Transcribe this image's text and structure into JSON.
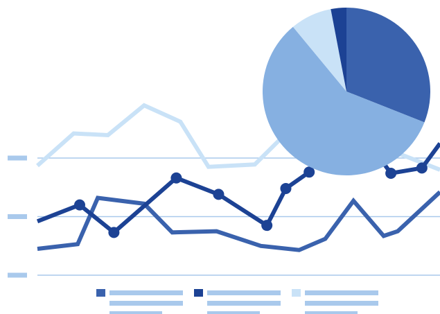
{
  "colors": {
    "grid": "#a9c9ec",
    "tick": "#a9c9ec",
    "legend_placeholder": "#a9c9ec",
    "series_light": "#c9e2f7",
    "series_medium": "#3a62ad",
    "series_dark": "#1c4294",
    "pie": [
      "#3a62ad",
      "#86b0e1",
      "#c9e2f7",
      "#1c4294"
    ]
  },
  "icons": [
    "legend-swatch-medium",
    "legend-swatch-dark",
    "legend-swatch-light"
  ],
  "chart_data": [
    {
      "type": "line",
      "title": "",
      "xlabel": "",
      "ylabel": "",
      "grid": true,
      "legend_placement": "bottom",
      "ylim": [
        0,
        3
      ],
      "yticks": [
        0,
        1,
        2
      ],
      "series": [
        {
          "color_key": "series_light",
          "markers": false,
          "points": [
            [
              0,
              1.87
            ],
            [
              0.09,
              2.42
            ],
            [
              0.175,
              2.39
            ],
            [
              0.265,
              2.9
            ],
            [
              0.355,
              2.62
            ],
            [
              0.425,
              1.85
            ],
            [
              0.54,
              1.89
            ],
            [
              0.625,
              2.47
            ],
            [
              0.76,
              1.86
            ],
            [
              0.87,
              2.15
            ],
            [
              1.0,
              1.8
            ]
          ]
        },
        {
          "color_key": "series_medium",
          "markers": false,
          "points": [
            [
              0,
              0.45
            ],
            [
              0.1,
              0.53
            ],
            [
              0.15,
              1.32
            ],
            [
              0.265,
              1.22
            ],
            [
              0.335,
              0.73
            ],
            [
              0.445,
              0.75
            ],
            [
              0.555,
              0.5
            ],
            [
              0.65,
              0.43
            ],
            [
              0.715,
              0.62
            ],
            [
              0.785,
              1.27
            ],
            [
              0.86,
              0.67
            ],
            [
              0.895,
              0.75
            ],
            [
              1.0,
              1.42
            ]
          ]
        },
        {
          "color_key": "series_dark",
          "markers": true,
          "points": [
            [
              0,
              0.92
            ],
            [
              0.105,
              1.2
            ],
            [
              0.19,
              0.73
            ],
            [
              0.345,
              1.66
            ],
            [
              0.45,
              1.38
            ],
            [
              0.57,
              0.85
            ],
            [
              0.617,
              1.48
            ],
            [
              0.675,
              1.76
            ],
            [
              0.73,
              2.52
            ],
            [
              0.818,
              2.31
            ],
            [
              0.878,
              1.74
            ],
            [
              0.955,
              1.83
            ],
            [
              1.0,
              2.25
            ]
          ]
        }
      ],
      "legend": [
        {
          "swatch": "series_medium"
        },
        {
          "swatch": "series_dark"
        },
        {
          "swatch": "series_light"
        }
      ]
    },
    {
      "type": "pie",
      "title": "",
      "slices": [
        {
          "value": 31,
          "color_index": 0
        },
        {
          "value": 58,
          "color_index": 1
        },
        {
          "value": 8,
          "color_index": 2
        },
        {
          "value": 3,
          "color_index": 3
        }
      ]
    }
  ]
}
